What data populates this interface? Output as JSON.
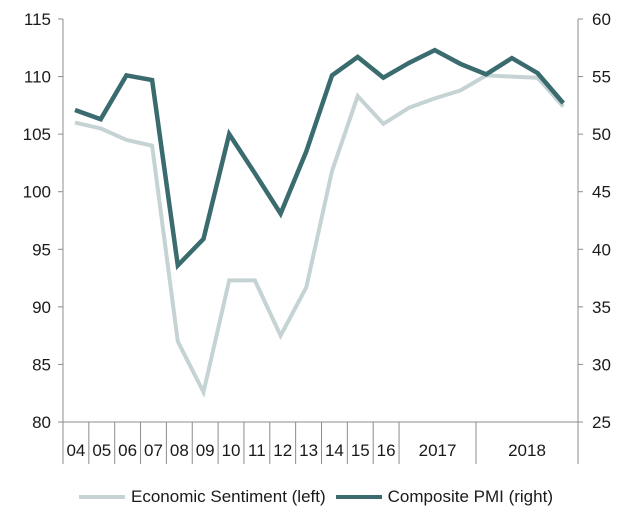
{
  "chart_data": {
    "type": "line",
    "x_tick_labels": [
      "04",
      "05",
      "06",
      "07",
      "08",
      "09",
      "10",
      "11",
      "12",
      "13",
      "14",
      "15",
      "16",
      "2017",
      "2018"
    ],
    "series": [
      {
        "name": "Economic Sentiment (left)",
        "axis": "left",
        "color": "#c5d3d4",
        "points": [
          {
            "x": 0,
            "y": 106.0
          },
          {
            "x": 1,
            "y": 105.5
          },
          {
            "x": 2,
            "y": 104.5
          },
          {
            "x": 3,
            "y": 104.0
          },
          {
            "x": 4,
            "y": 87.0
          },
          {
            "x": 5,
            "y": 82.6
          },
          {
            "x": 6,
            "y": 92.3
          },
          {
            "x": 7,
            "y": 92.3
          },
          {
            "x": 8,
            "y": 87.5
          },
          {
            "x": 9,
            "y": 91.7
          },
          {
            "x": 10,
            "y": 101.8
          },
          {
            "x": 11,
            "y": 108.3
          },
          {
            "x": 12,
            "y": 105.9
          },
          {
            "x": 13,
            "y": 107.3
          },
          {
            "x": 14,
            "y": 108.1
          },
          {
            "x": 15,
            "y": 108.8
          },
          {
            "x": 16,
            "y": 110.1
          },
          {
            "x": 17,
            "y": 110.0
          },
          {
            "x": 18,
            "y": 109.9
          },
          {
            "x": 19,
            "y": 107.4
          }
        ]
      },
      {
        "name": "Composite PMI (right)",
        "axis": "right",
        "color": "#3a6b6e",
        "points": [
          {
            "x": 0,
            "y": 52.1
          },
          {
            "x": 1,
            "y": 51.3
          },
          {
            "x": 2,
            "y": 55.1
          },
          {
            "x": 3,
            "y": 54.7
          },
          {
            "x": 4,
            "y": 38.6
          },
          {
            "x": 5,
            "y": 40.9
          },
          {
            "x": 6,
            "y": 50.0
          },
          {
            "x": 7,
            "y": 46.6
          },
          {
            "x": 8,
            "y": 43.1
          },
          {
            "x": 9,
            "y": 48.5
          },
          {
            "x": 10,
            "y": 55.1
          },
          {
            "x": 11,
            "y": 56.7
          },
          {
            "x": 12,
            "y": 54.9
          },
          {
            "x": 13,
            "y": 56.2
          },
          {
            "x": 14,
            "y": 57.3
          },
          {
            "x": 15,
            "y": 56.1
          },
          {
            "x": 16,
            "y": 55.2
          },
          {
            "x": 17,
            "y": 56.6
          },
          {
            "x": 18,
            "y": 55.3
          },
          {
            "x": 19,
            "y": 52.7
          }
        ]
      }
    ],
    "left_axis": {
      "ylim": [
        80,
        115
      ],
      "ticks": [
        80,
        85,
        90,
        95,
        100,
        105,
        110,
        115
      ]
    },
    "right_axis": {
      "ylim": [
        25,
        60
      ],
      "ticks": [
        25,
        30,
        35,
        40,
        45,
        50,
        55,
        60
      ]
    },
    "grid": false,
    "legend_position": "bottom"
  },
  "legend": {
    "economic_sentiment": "Economic Sentiment (left)",
    "composite_pmi": "Composite PMI (right)"
  }
}
